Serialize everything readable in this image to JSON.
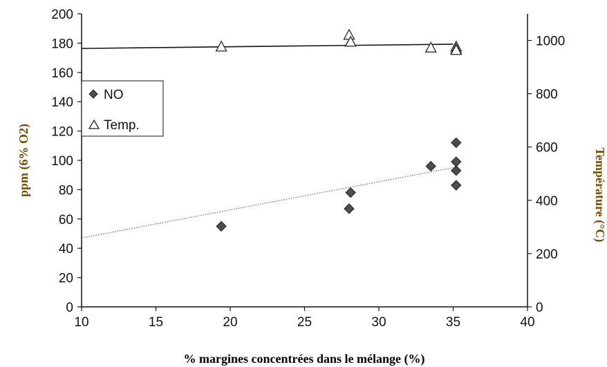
{
  "chart_data": {
    "type": "scatter",
    "title": "",
    "xlabel": "% margines concentrées dans le mélange (%)",
    "ylabel": "ppm (6% O2)",
    "y2label": "Température (°C)",
    "xlim": [
      10,
      40
    ],
    "ylim": [
      0,
      200
    ],
    "y2lim": [
      0,
      1100
    ],
    "x_ticks": [
      10,
      15,
      20,
      25,
      30,
      35,
      40
    ],
    "y_ticks": [
      0,
      20,
      40,
      60,
      80,
      100,
      120,
      140,
      160,
      180,
      200
    ],
    "y2_ticks": [
      0,
      200,
      400,
      600,
      800,
      1000
    ],
    "grid": false,
    "legend_position": "left",
    "colors": {
      "no_marker": "#4d4d4d",
      "temp_marker": "#333333",
      "axis": "#111111",
      "x_title": "#000000",
      "y_title": "#7a4a00",
      "y2_title": "#7a4a00"
    },
    "series": [
      {
        "name": "NO",
        "axis": "left",
        "marker": "diamond",
        "x": [
          19.4,
          28.0,
          28.1,
          33.5,
          35.2,
          35.2,
          35.2,
          35.2
        ],
        "y": [
          55,
          67,
          78,
          96,
          112,
          99,
          93,
          83
        ],
        "trendline": {
          "style": "dotted",
          "x": [
            10,
            35
          ],
          "y": [
            47,
            95
          ]
        }
      },
      {
        "name": "Temp.",
        "axis": "right",
        "marker": "triangle-open",
        "x": [
          19.4,
          28.0,
          28.1,
          33.5,
          35.2,
          35.2,
          35.2
        ],
        "y": [
          976,
          1020,
          994,
          972,
          976,
          967,
          963
        ],
        "trendline": {
          "style": "solid",
          "x": [
            10,
            35
          ],
          "y": [
            970,
            986
          ]
        }
      }
    ]
  }
}
